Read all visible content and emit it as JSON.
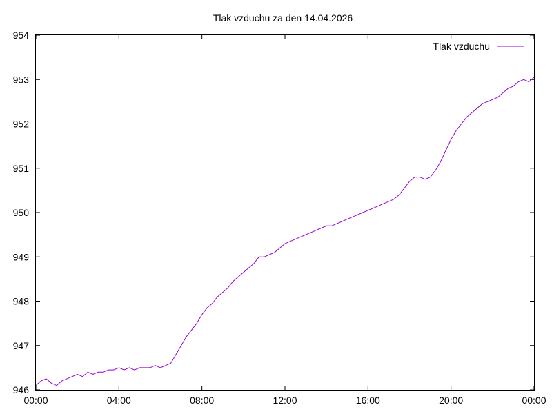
{
  "chart_data": {
    "type": "line",
    "title": "Tlak vzduchu za den 14.04.2026",
    "xlabel": "",
    "ylabel": "",
    "x_unit": "hours",
    "xlim": [
      0,
      24
    ],
    "ylim": [
      946,
      954
    ],
    "x_ticks": [
      {
        "value": 0,
        "label": "00:00"
      },
      {
        "value": 4,
        "label": "04:00"
      },
      {
        "value": 8,
        "label": "08:00"
      },
      {
        "value": 12,
        "label": "12:00"
      },
      {
        "value": 16,
        "label": "16:00"
      },
      {
        "value": 20,
        "label": "20:00"
      },
      {
        "value": 24,
        "label": "00:00"
      }
    ],
    "y_ticks": [
      946,
      947,
      948,
      949,
      950,
      951,
      952,
      953,
      954
    ],
    "grid": false,
    "legend_position": "top-right",
    "series": [
      {
        "name": "Tlak vzduchu",
        "color": "#9400d3",
        "x": [
          0.0,
          0.25,
          0.5,
          0.75,
          1.0,
          1.25,
          1.5,
          1.75,
          2.0,
          2.25,
          2.5,
          2.75,
          3.0,
          3.25,
          3.5,
          3.75,
          4.0,
          4.25,
          4.5,
          4.75,
          5.0,
          5.25,
          5.5,
          5.75,
          6.0,
          6.25,
          6.5,
          6.75,
          7.0,
          7.25,
          7.5,
          7.75,
          8.0,
          8.25,
          8.5,
          8.75,
          9.0,
          9.25,
          9.5,
          9.75,
          10.0,
          10.25,
          10.5,
          10.75,
          11.0,
          11.25,
          11.5,
          11.75,
          12.0,
          12.25,
          12.5,
          12.75,
          13.0,
          13.25,
          13.5,
          13.75,
          14.0,
          14.25,
          14.5,
          14.75,
          15.0,
          15.25,
          15.5,
          15.75,
          16.0,
          16.25,
          16.5,
          16.75,
          17.0,
          17.25,
          17.5,
          17.75,
          18.0,
          18.25,
          18.5,
          18.75,
          19.0,
          19.25,
          19.5,
          19.75,
          20.0,
          20.25,
          20.5,
          20.75,
          21.0,
          21.25,
          21.5,
          21.75,
          22.0,
          22.25,
          22.5,
          22.75,
          23.0,
          23.25,
          23.5,
          23.75,
          24.0
        ],
        "values": [
          946.1,
          946.2,
          946.25,
          946.15,
          946.1,
          946.2,
          946.25,
          946.3,
          946.35,
          946.3,
          946.4,
          946.35,
          946.4,
          946.4,
          946.45,
          946.45,
          946.5,
          946.45,
          946.5,
          946.45,
          946.5,
          946.5,
          946.5,
          946.55,
          946.5,
          946.55,
          946.6,
          946.8,
          947.0,
          947.2,
          947.35,
          947.5,
          947.7,
          947.85,
          947.95,
          948.1,
          948.2,
          948.3,
          948.45,
          948.55,
          948.65,
          948.75,
          948.85,
          949.0,
          949.0,
          949.05,
          949.1,
          949.2,
          949.3,
          949.35,
          949.4,
          949.45,
          949.5,
          949.55,
          949.6,
          949.65,
          949.7,
          949.7,
          949.75,
          949.8,
          949.85,
          949.9,
          949.95,
          950.0,
          950.05,
          950.1,
          950.15,
          950.2,
          950.25,
          950.3,
          950.4,
          950.55,
          950.7,
          950.8,
          950.8,
          950.75,
          950.8,
          950.95,
          951.15,
          951.4,
          951.65,
          951.85,
          952.0,
          952.15,
          952.25,
          952.35,
          952.45,
          952.5,
          952.55,
          952.6,
          952.7,
          952.8,
          952.85,
          952.95,
          953.0,
          952.95,
          953.05
        ]
      }
    ]
  }
}
